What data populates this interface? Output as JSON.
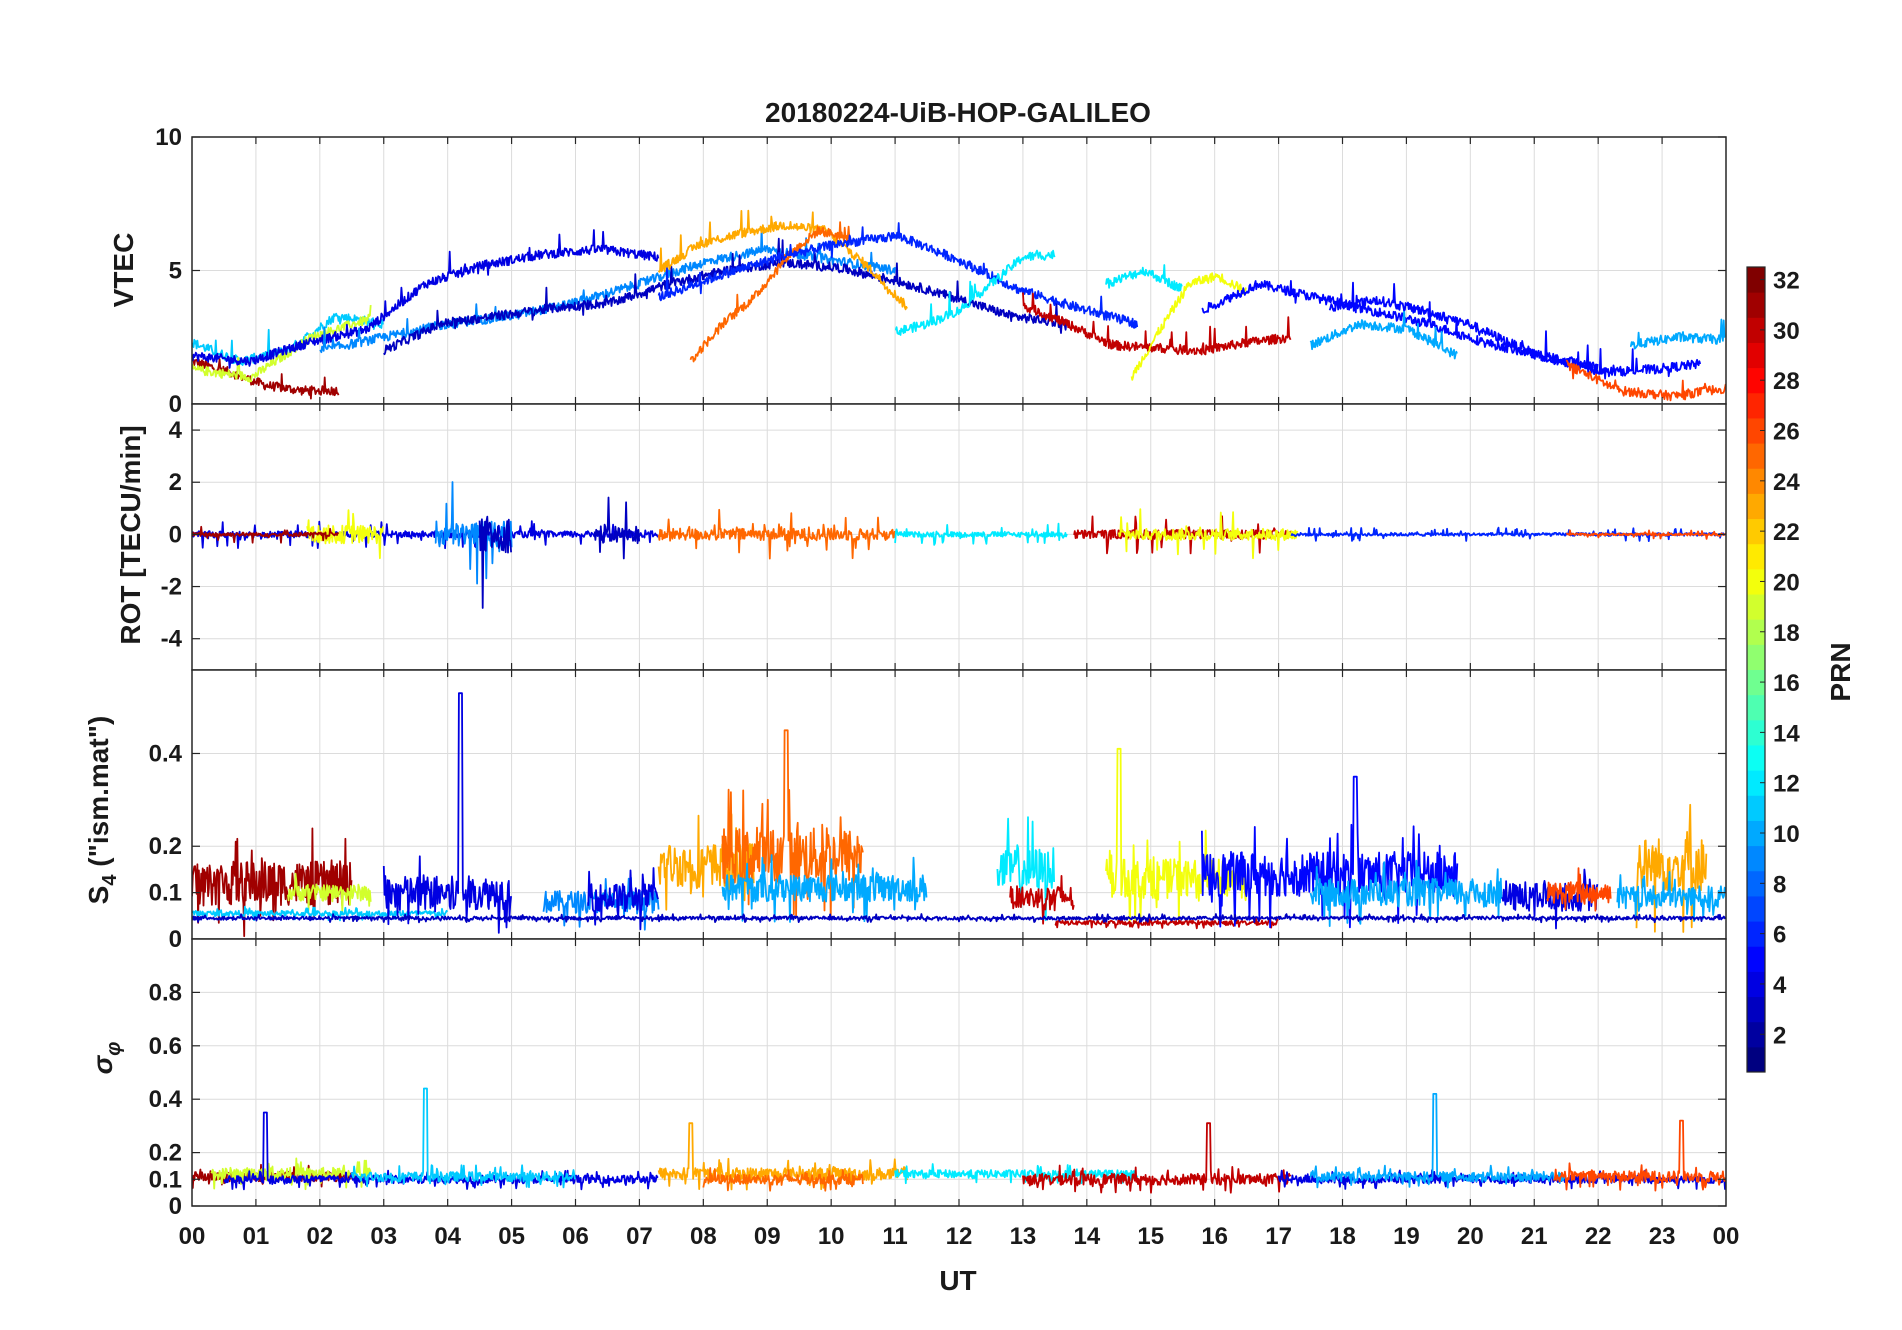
{
  "chart_data": {
    "type": "line",
    "title": "20180224-UiB-HOP-GALILEO",
    "xlabel": "UT",
    "x_tick_labels": [
      "00",
      "01",
      "02",
      "03",
      "04",
      "05",
      "06",
      "07",
      "08",
      "09",
      "10",
      "11",
      "12",
      "13",
      "14",
      "15",
      "16",
      "17",
      "18",
      "19",
      "20",
      "21",
      "22",
      "23",
      "00"
    ],
    "xlim_hours": [
      0,
      24
    ],
    "colorbar": {
      "label": "PRN",
      "colormap": "jet",
      "range": [
        1,
        32
      ],
      "tick_labels": [
        "2",
        "4",
        "6",
        "8",
        "10",
        "12",
        "14",
        "16",
        "18",
        "20",
        "22",
        "24",
        "26",
        "28",
        "30",
        "32"
      ]
    },
    "panels": [
      {
        "id": "vtec",
        "ylabel": "VTEC",
        "ylim": [
          0,
          10
        ],
        "y_ticks": [
          0,
          5,
          10
        ],
        "y_tick_labels": [
          "0",
          "5",
          "10"
        ],
        "series": [
          {
            "prn": 31,
            "start": 0.0,
            "end": 2.3,
            "anchors": [
              1.6,
              1.2,
              0.7,
              0.5,
              0.5
            ]
          },
          {
            "prn": 11,
            "start": 0.0,
            "end": 3.0,
            "anchors": [
              2.3,
              1.6,
              2.0,
              3.3,
              3.0
            ]
          },
          {
            "prn": 19,
            "start": 0.0,
            "end": 2.8,
            "anchors": [
              1.3,
              1.0,
              2.5,
              3.2
            ]
          },
          {
            "prn": 4,
            "start": 0.0,
            "end": 7.3,
            "anchors": [
              1.8,
              1.6,
              2.3,
              2.8,
              4.5,
              5.2,
              5.6,
              5.8,
              5.5
            ]
          },
          {
            "prn": 9,
            "start": 2.0,
            "end": 11.0,
            "anchors": [
              2.0,
              2.5,
              3.0,
              3.3,
              3.8,
              4.5,
              5.3,
              5.8,
              5.4,
              5.0
            ]
          },
          {
            "prn": 3,
            "start": 3.0,
            "end": 13.7,
            "anchors": [
              2.0,
              3.0,
              3.3,
              3.6,
              3.8,
              4.5,
              5.0,
              5.3,
              5.1,
              4.6,
              4.0,
              3.3,
              3.0
            ]
          },
          {
            "prn": 23,
            "start": 7.3,
            "end": 11.2,
            "anchors": [
              5.0,
              6.0,
              6.4,
              6.7,
              6.5,
              5.2,
              3.6
            ]
          },
          {
            "prn": 25,
            "start": 7.8,
            "end": 10.3,
            "anchors": [
              1.6,
              3.0,
              4.0,
              5.5,
              6.5,
              6.2
            ]
          },
          {
            "prn": 6,
            "start": 7.3,
            "end": 14.8,
            "anchors": [
              4.0,
              4.8,
              5.5,
              6.0,
              6.3,
              5.4,
              4.3,
              3.6,
              3.0
            ]
          },
          {
            "prn": 12,
            "start": 11.0,
            "end": 13.5,
            "anchors": [
              2.7,
              3.0,
              3.5,
              4.5,
              5.5,
              5.6
            ]
          },
          {
            "prn": 30,
            "start": 13.0,
            "end": 17.2,
            "anchors": [
              3.7,
              3.0,
              2.2,
              2.1,
              2.0,
              2.3,
              2.5
            ]
          },
          {
            "prn": 12,
            "start": 14.3,
            "end": 15.5,
            "anchors": [
              4.5,
              5.0,
              4.3
            ]
          },
          {
            "prn": 20,
            "start": 14.7,
            "end": 16.5,
            "anchors": [
              1.0,
              2.8,
              4.5,
              4.8,
              4.2
            ]
          },
          {
            "prn": 5,
            "start": 15.8,
            "end": 22.0,
            "anchors": [
              3.5,
              4.5,
              4.0,
              3.5,
              3.0,
              2.3,
              1.8,
              1.4
            ]
          },
          {
            "prn": 10,
            "start": 17.5,
            "end": 19.8,
            "anchors": [
              2.2,
              3.0,
              2.8,
              1.8
            ]
          },
          {
            "prn": 5,
            "start": 17.8,
            "end": 23.6,
            "anchors": [
              3.6,
              3.9,
              3.5,
              3.0,
              2.2,
              1.5,
              1.2,
              1.3,
              1.5
            ]
          },
          {
            "prn": 10,
            "start": 22.5,
            "end": 24.0,
            "anchors": [
              2.2,
              2.5,
              2.4
            ]
          },
          {
            "prn": 26,
            "start": 21.5,
            "end": 24.0,
            "anchors": [
              1.5,
              0.5,
              0.3,
              0.6
            ]
          }
        ]
      },
      {
        "id": "rot",
        "ylabel": "ROT [TECU/min]",
        "ylim": [
          -5.2,
          5.0
        ],
        "y_ticks": [
          -4,
          -2,
          0,
          2,
          4
        ],
        "y_tick_labels": [
          "-4",
          "-2",
          "0",
          "2",
          "4"
        ],
        "series": [
          {
            "prn": 4,
            "start": 0.0,
            "end": 7.3,
            "noise": 0.25
          },
          {
            "prn": 20,
            "start": 1.8,
            "end": 3.0,
            "noise": 0.7
          },
          {
            "prn": 31,
            "start": 0.0,
            "end": 2.3,
            "noise": 0.15
          },
          {
            "prn": 9,
            "start": 3.8,
            "end": 5.0,
            "noise": 1.0
          },
          {
            "prn": 3,
            "start": 4.5,
            "end": 5.0,
            "noise": 1.4
          },
          {
            "prn": 3,
            "start": 6.3,
            "end": 7.0,
            "noise": 0.7
          },
          {
            "prn": 25,
            "start": 7.3,
            "end": 11.0,
            "noise": 0.45
          },
          {
            "prn": 12,
            "start": 11.0,
            "end": 13.7,
            "noise": 0.2
          },
          {
            "prn": 30,
            "start": 13.8,
            "end": 17.2,
            "noise": 0.35
          },
          {
            "prn": 20,
            "start": 14.5,
            "end": 17.3,
            "noise": 0.45
          },
          {
            "prn": 6,
            "start": 17.2,
            "end": 24.0,
            "noise": 0.12
          },
          {
            "prn": 26,
            "start": 21.5,
            "end": 24.0,
            "noise": 0.08
          }
        ]
      },
      {
        "id": "s4",
        "ylabel": "S4 (\"ism.mat\")",
        "ylabel_main": "S",
        "ylabel_sub": "4",
        "ylabel_rest": " (\"ism.mat\")",
        "ylim": [
          0,
          0.58
        ],
        "y_ticks": [
          0,
          0.1,
          0.2,
          0.4
        ],
        "y_tick_labels": [
          "0",
          "0.1",
          "0.2",
          "0.4"
        ],
        "series": [
          {
            "prn": 31,
            "start": 0.0,
            "end": 2.5,
            "base": 0.12,
            "noise": 0.08
          },
          {
            "prn": 19,
            "start": 1.5,
            "end": 2.8,
            "base": 0.1,
            "noise": 0.03
          },
          {
            "prn": 11,
            "start": 0.0,
            "end": 4.0,
            "base": 0.055,
            "noise": 0.01
          },
          {
            "prn": 4,
            "start": 3.0,
            "end": 5.0,
            "base": 0.1,
            "noise": 0.06,
            "peak_at": 4.2,
            "peak": 0.53
          },
          {
            "prn": 9,
            "start": 5.5,
            "end": 7.3,
            "base": 0.08,
            "noise": 0.04
          },
          {
            "prn": 4,
            "start": 6.2,
            "end": 7.3,
            "base": 0.09,
            "noise": 0.05
          },
          {
            "prn": 23,
            "start": 7.3,
            "end": 8.8,
            "base": 0.16,
            "noise": 0.08
          },
          {
            "prn": 25,
            "start": 8.3,
            "end": 10.5,
            "base": 0.18,
            "noise": 0.1,
            "peak_at": 9.3,
            "peak": 0.45
          },
          {
            "prn": 10,
            "start": 8.3,
            "end": 11.5,
            "base": 0.11,
            "noise": 0.05
          },
          {
            "prn": 12,
            "start": 12.6,
            "end": 13.5,
            "base": 0.15,
            "noise": 0.08
          },
          {
            "prn": 30,
            "start": 12.8,
            "end": 13.8,
            "base": 0.09,
            "noise": 0.04
          },
          {
            "prn": 20,
            "start": 14.3,
            "end": 16.5,
            "base": 0.13,
            "noise": 0.07,
            "peak_at": 14.5,
            "peak": 0.41
          },
          {
            "prn": 30,
            "start": 13.5,
            "end": 17.0,
            "base": 0.035,
            "noise": 0.008
          },
          {
            "prn": 5,
            "start": 15.8,
            "end": 19.8,
            "base": 0.14,
            "noise": 0.08,
            "peak_at": 18.2,
            "peak": 0.35
          },
          {
            "prn": 10,
            "start": 17.5,
            "end": 20.5,
            "base": 0.1,
            "noise": 0.05
          },
          {
            "prn": 4,
            "start": 20.5,
            "end": 22.0,
            "base": 0.09,
            "noise": 0.05
          },
          {
            "prn": 26,
            "start": 21.2,
            "end": 22.2,
            "base": 0.1,
            "noise": 0.04
          },
          {
            "prn": 23,
            "start": 22.6,
            "end": 23.7,
            "base": 0.16,
            "noise": 0.1
          },
          {
            "prn": 10,
            "start": 22.3,
            "end": 24.0,
            "base": 0.09,
            "noise": 0.04
          },
          {
            "prn": 3,
            "start": 0.0,
            "end": 24.0,
            "base": 0.045,
            "noise": 0.006
          }
        ]
      },
      {
        "id": "sigma_phi",
        "ylabel": "σφ",
        "ylabel_main": "σ",
        "ylabel_sub": "φ",
        "ylim": [
          0,
          1.0
        ],
        "y_ticks": [
          0,
          0.1,
          0.2,
          0.4,
          0.6,
          0.8
        ],
        "y_tick_labels": [
          "0",
          "0.1",
          "0.2",
          "0.4",
          "0.6",
          "0.8"
        ],
        "series": [
          {
            "prn": 31,
            "start": 0.0,
            "end": 2.5,
            "base": 0.11,
            "noise": 0.03
          },
          {
            "prn": 19,
            "start": 0.3,
            "end": 2.8,
            "base": 0.12,
            "noise": 0.04
          },
          {
            "prn": 4,
            "start": 0.5,
            "end": 7.3,
            "base": 0.1,
            "noise": 0.025,
            "peak_at": 1.15,
            "peak": 0.35
          },
          {
            "prn": 11,
            "start": 2.5,
            "end": 6.0,
            "base": 0.11,
            "noise": 0.03,
            "peak_at": 3.65,
            "peak": 0.44
          },
          {
            "prn": 23,
            "start": 7.3,
            "end": 11.2,
            "base": 0.12,
            "noise": 0.04,
            "peak_at": 7.8,
            "peak": 0.31
          },
          {
            "prn": 25,
            "start": 8.0,
            "end": 10.5,
            "base": 0.1,
            "noise": 0.03
          },
          {
            "prn": 12,
            "start": 11.0,
            "end": 14.8,
            "base": 0.12,
            "noise": 0.025
          },
          {
            "prn": 30,
            "start": 13.0,
            "end": 17.2,
            "base": 0.1,
            "noise": 0.035,
            "peak_at": 15.9,
            "peak": 0.31
          },
          {
            "prn": 4,
            "start": 17.0,
            "end": 24.0,
            "base": 0.1,
            "noise": 0.025
          },
          {
            "prn": 10,
            "start": 17.5,
            "end": 21.5,
            "base": 0.11,
            "noise": 0.03,
            "peak_at": 19.45,
            "peak": 0.42
          },
          {
            "prn": 26,
            "start": 21.3,
            "end": 24.0,
            "base": 0.11,
            "noise": 0.035,
            "peak_at": 23.3,
            "peak": 0.32
          }
        ]
      }
    ]
  }
}
